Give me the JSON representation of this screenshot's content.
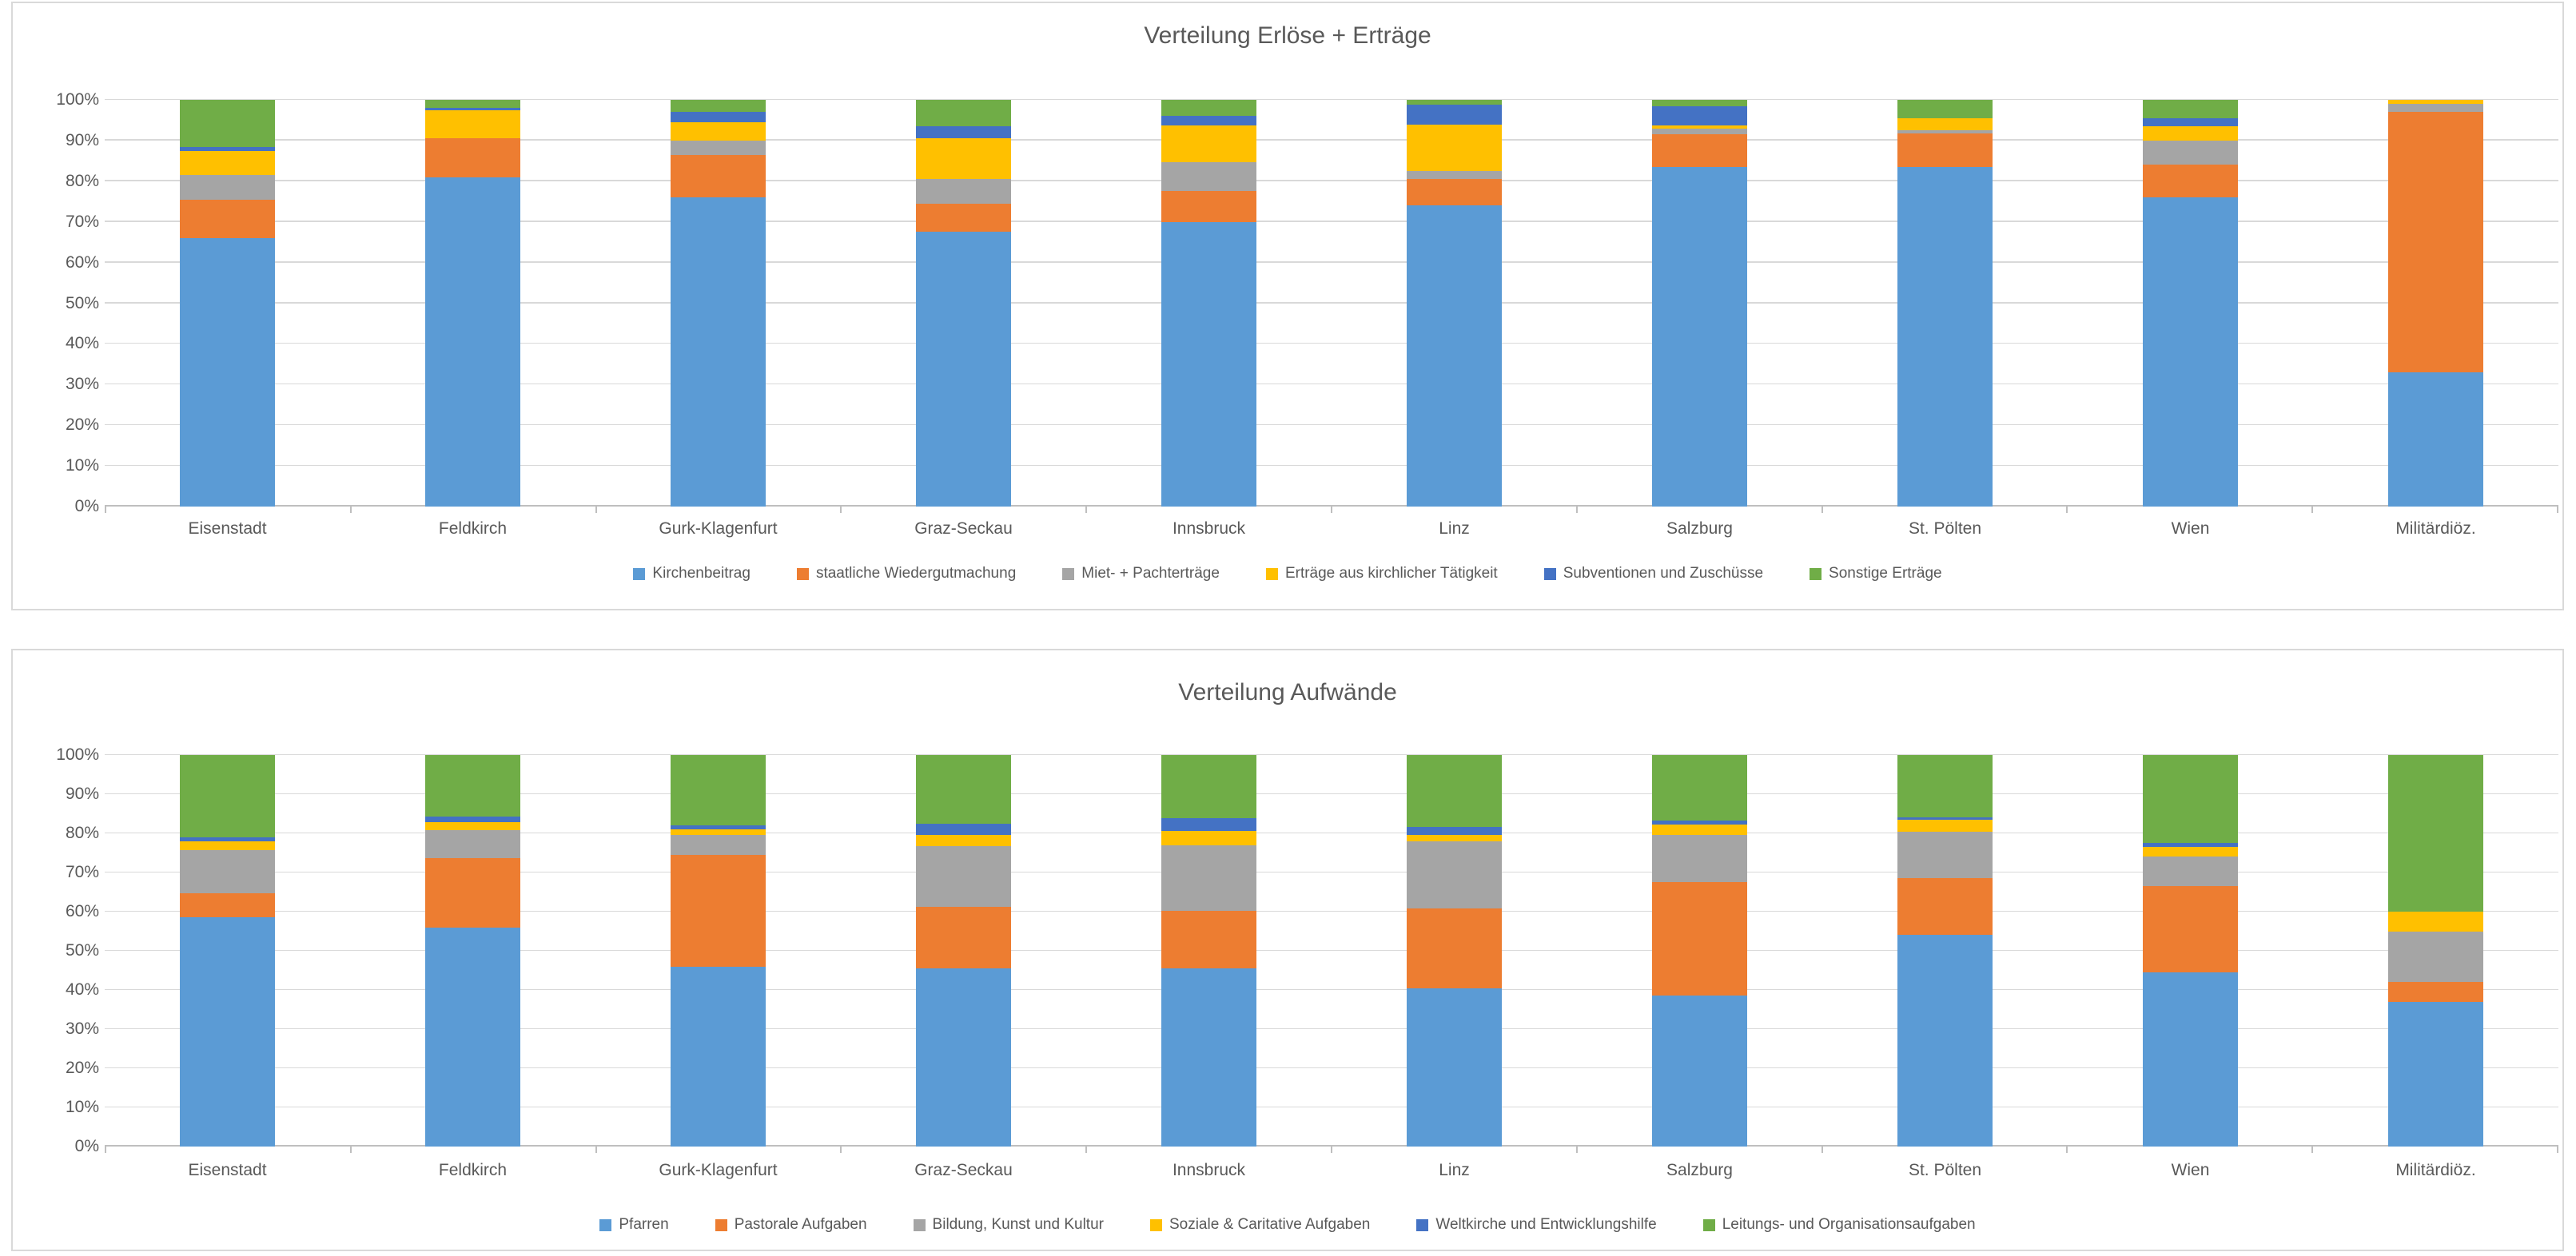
{
  "colors": {
    "blue": "#5B9BD5",
    "orange": "#ED7D31",
    "gray": "#A5A5A5",
    "yellow": "#FFC000",
    "darkblue": "#4472C4",
    "green": "#70AD47",
    "gridline": "#D9D9D9",
    "axis_line": "#BFBFBF",
    "text": "#595959",
    "panel_border": "#D9D9D9"
  },
  "chart_data": [
    {
      "type": "bar",
      "subtype": "stacked-100-percent",
      "title": "Verteilung Erlöse + Erträge",
      "grid": true,
      "legend_position": "bottom",
      "ylim": [
        0,
        100
      ],
      "y_ticks": [
        "0%",
        "10%",
        "20%",
        "30%",
        "40%",
        "50%",
        "60%",
        "70%",
        "80%",
        "90%",
        "100%"
      ],
      "categories": [
        "Eisenstadt",
        "Feldkirch",
        "Gurk-Klagenfurt",
        "Graz-Seckau",
        "Innsbruck",
        "Linz",
        "Salzburg",
        "St. Pölten",
        "Wien",
        "Militärdiöz."
      ],
      "series": [
        {
          "name": "Kirchenbeitrag",
          "color": "#5B9BD5",
          "values": [
            66,
            81,
            76,
            67.5,
            70,
            74,
            83.5,
            83.5,
            76,
            33
          ]
        },
        {
          "name": "staatliche Wiedergutmachung",
          "color": "#ED7D31",
          "values": [
            9.5,
            9.5,
            10.5,
            7,
            7.7,
            6.5,
            8,
            8.3,
            8,
            64
          ]
        },
        {
          "name": "Miet- + Pachterträge",
          "color": "#A5A5A5",
          "values": [
            6,
            0,
            3.5,
            6,
            7,
            2,
            1.5,
            0.8,
            6,
            2
          ]
        },
        {
          "name": "Erträge aus kirchlicher Tätigkeit",
          "color": "#FFC000",
          "values": [
            6,
            7,
            4.5,
            10,
            9,
            11.5,
            0.7,
            2.9,
            3.5,
            1
          ]
        },
        {
          "name": "Subventionen und Zuschüsse",
          "color": "#4472C4",
          "values": [
            1,
            0.5,
            2.5,
            3,
            2.3,
            4.8,
            4.8,
            0,
            2,
            0
          ]
        },
        {
          "name": "Sonstige Erträge",
          "color": "#70AD47",
          "values": [
            11.5,
            2,
            3,
            6.5,
            4,
            1.2,
            1.5,
            4.5,
            4.5,
            0
          ]
        }
      ]
    },
    {
      "type": "bar",
      "subtype": "stacked-100-percent",
      "title": "Verteilung Aufwände",
      "grid": true,
      "legend_position": "bottom",
      "ylim": [
        0,
        100
      ],
      "y_ticks": [
        "0%",
        "10%",
        "20%",
        "30%",
        "40%",
        "50%",
        "60%",
        "70%",
        "80%",
        "90%",
        "100%"
      ],
      "categories": [
        "Eisenstadt",
        "Feldkirch",
        "Gurk-Klagenfurt",
        "Graz-Seckau",
        "Innsbruck",
        "Linz",
        "Salzburg",
        "St. Pölten",
        "Wien",
        "Militärdiöz."
      ],
      "series": [
        {
          "name": "Pfarren",
          "color": "#5B9BD5",
          "values": [
            58.5,
            56,
            46,
            45.5,
            45.5,
            40.5,
            38.5,
            54,
            44.5,
            37
          ]
        },
        {
          "name": "Pastorale Aufgaben",
          "color": "#ED7D31",
          "values": [
            6.3,
            17.7,
            28.5,
            15.7,
            14.8,
            20.3,
            29,
            14.5,
            22,
            5
          ]
        },
        {
          "name": "Bildung, Kunst und Kultur",
          "color": "#A5A5A5",
          "values": [
            11,
            7.2,
            5,
            15.6,
            16.6,
            17.2,
            12,
            12,
            7.6,
            13
          ]
        },
        {
          "name": "Soziale & Caritative Aufgaben",
          "color": "#FFC000",
          "values": [
            2.2,
            2,
            1.5,
            2.9,
            3.7,
            1.7,
            2.7,
            3,
            2.4,
            5
          ]
        },
        {
          "name": "Weltkirche und Entwicklungshilfe",
          "color": "#4472C4",
          "values": [
            1,
            1.3,
            1,
            2.7,
            3.3,
            1.9,
            1,
            0.5,
            1,
            0
          ]
        },
        {
          "name": "Leitungs- und Organisationsaufgaben",
          "color": "#70AD47",
          "values": [
            21,
            15.8,
            18,
            17.6,
            16.1,
            18.4,
            16.8,
            16,
            22.5,
            40
          ]
        }
      ]
    }
  ]
}
